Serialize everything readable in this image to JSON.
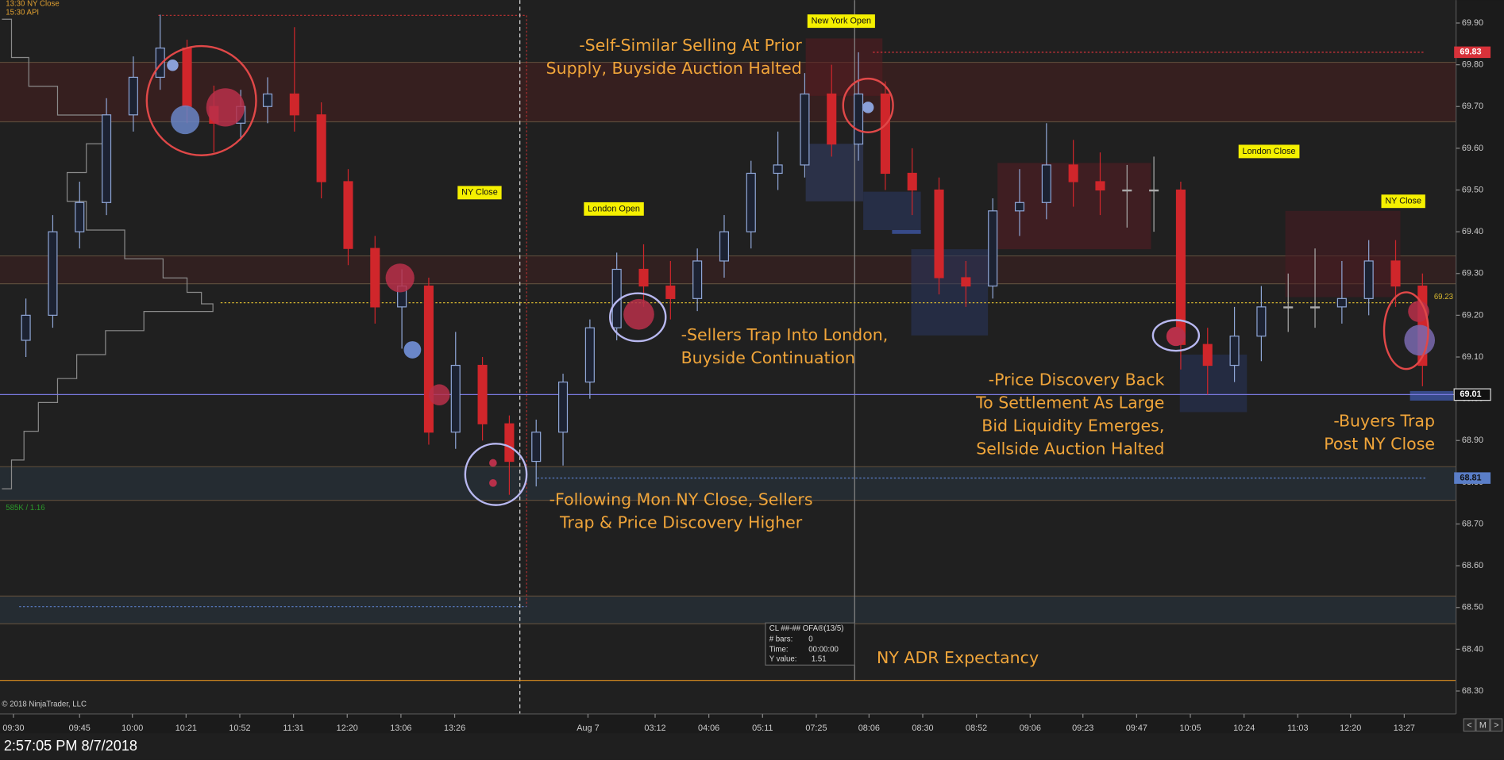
{
  "chart_data": {
    "type": "candlestick",
    "header_texts": [
      "13:30 NY Close",
      "15:30 API"
    ],
    "copyright": "© 2018 NinjaTrader, LLC",
    "volume_stat": "585K / 1.16",
    "open": [
      69.14,
      69.2,
      69.4,
      69.47,
      69.68,
      69.77,
      69.84,
      69.7,
      69.66,
      69.7,
      69.73,
      69.68,
      69.52,
      69.36,
      69.22,
      69.27,
      68.92,
      69.08,
      68.94,
      68.85,
      68.92,
      69.04,
      69.17,
      69.31,
      69.27,
      69.24,
      69.33,
      69.4,
      69.54,
      69.56,
      69.73,
      69.61,
      69.73,
      69.54,
      69.5,
      69.29,
      69.27,
      69.45,
      69.47,
      69.56,
      69.52,
      69.5,
      69.5,
      69.5,
      69.13,
      69.08,
      69.15,
      69.22,
      69.22,
      69.22,
      69.24,
      69.33,
      69.27
    ],
    "high": [
      69.24,
      69.44,
      69.52,
      69.72,
      69.82,
      69.92,
      69.86,
      69.75,
      69.74,
      69.77,
      69.89,
      69.71,
      69.55,
      69.39,
      69.31,
      69.29,
      69.16,
      69.1,
      68.96,
      68.95,
      69.06,
      69.19,
      69.35,
      69.37,
      69.33,
      69.36,
      69.44,
      69.57,
      69.64,
      69.78,
      69.8,
      69.83,
      69.76,
      69.6,
      69.53,
      69.33,
      69.48,
      69.55,
      69.66,
      69.62,
      69.59,
      69.56,
      69.58,
      69.52,
      69.17,
      69.22,
      69.27,
      69.3,
      69.36,
      69.33,
      69.38,
      69.38,
      69.3
    ],
    "low": [
      69.1,
      69.17,
      69.36,
      69.44,
      69.64,
      69.74,
      69.66,
      69.59,
      69.62,
      69.66,
      69.64,
      69.48,
      69.32,
      69.18,
      69.12,
      68.89,
      68.88,
      68.9,
      68.77,
      68.79,
      68.84,
      69.0,
      69.14,
      69.22,
      69.19,
      69.21,
      69.29,
      69.36,
      69.5,
      69.53,
      69.58,
      69.57,
      69.5,
      69.44,
      69.25,
      69.22,
      69.24,
      69.39,
      69.43,
      69.46,
      69.44,
      69.41,
      69.4,
      69.07,
      69.01,
      69.04,
      69.09,
      69.16,
      69.17,
      69.18,
      69.2,
      69.22,
      69.03
    ],
    "close": [
      69.2,
      69.4,
      69.47,
      69.68,
      69.77,
      69.84,
      69.7,
      69.66,
      69.7,
      69.73,
      69.68,
      69.52,
      69.36,
      69.22,
      69.27,
      68.92,
      69.08,
      68.94,
      68.85,
      68.92,
      69.04,
      69.17,
      69.31,
      69.27,
      69.24,
      69.33,
      69.4,
      69.54,
      69.56,
      69.73,
      69.61,
      69.73,
      69.54,
      69.5,
      69.29,
      69.27,
      69.45,
      69.47,
      69.56,
      69.52,
      69.5,
      69.5,
      69.5,
      69.13,
      69.08,
      69.15,
      69.22,
      69.22,
      69.22,
      69.24,
      69.33,
      69.27,
      69.08
    ],
    "up_color": "#8fa6d6",
    "down_color": "#d0262b",
    "ylim": [
      68.245,
      69.955
    ],
    "yticks": [
      {
        "value": 68.3,
        "label": "68.30"
      },
      {
        "value": 68.4,
        "label": "68.40"
      },
      {
        "value": 68.5,
        "label": "68.50"
      },
      {
        "value": 68.6,
        "label": "68.60"
      },
      {
        "value": 68.7,
        "label": "68.70"
      },
      {
        "value": 68.8,
        "label": "68.80"
      },
      {
        "value": 68.9,
        "label": "68.90"
      },
      {
        "value": 69.0,
        "label": "69.00"
      },
      {
        "value": 69.1,
        "label": "69.10"
      },
      {
        "value": 69.2,
        "label": "69.20"
      },
      {
        "value": 69.3,
        "label": "69.30"
      },
      {
        "value": 69.4,
        "label": "69.40"
      },
      {
        "value": 69.5,
        "label": "69.50"
      },
      {
        "value": 69.6,
        "label": "69.60"
      },
      {
        "value": 69.7,
        "label": "69.70"
      },
      {
        "value": 69.8,
        "label": "69.80"
      },
      {
        "value": 69.9,
        "label": "69.90"
      }
    ],
    "price_lines": [
      {
        "value": 69.83,
        "color": "#d8323a"
      },
      {
        "value": 69.23,
        "color": "#d8b830"
      },
      {
        "value": 69.01,
        "color": "#7a7ae0"
      },
      {
        "value": 68.81,
        "color": "#5a7ec8"
      }
    ],
    "x_labels": [
      "09:30",
      "09:45",
      "10:00",
      "10:21",
      "10:52",
      "11:31",
      "12:20",
      "13:06",
      "13:26",
      "Aug 7",
      "03:12",
      "04:06",
      "05:11",
      "07:25",
      "08:06",
      "08:30",
      "08:52",
      "09:06",
      "09:23",
      "09:47",
      "10:05",
      "10:24",
      "11:03",
      "12:20",
      "13:27"
    ],
    "session_labels": [
      "NY Close",
      "London Open",
      "New York Open",
      "London Close",
      "NY Close"
    ],
    "annotations": [
      {
        "lines": [
          "-Self-Similar Selling At Prior",
          "Supply, Buyside Auction Halted"
        ]
      },
      {
        "lines": [
          "-Sellers Trap Into London,",
          "Buyside Continuation"
        ]
      },
      {
        "lines": [
          "-Price Discovery Back",
          "To Settlement  As Large",
          "Bid Liquidity Emerges,",
          "Sellside Auction Halted"
        ]
      },
      {
        "lines": [
          "-Buyers Trap",
          "Post NY Close"
        ]
      },
      {
        "lines": [
          "-Following Mon NY Close, Sellers",
          "Trap & Price Discovery Higher"
        ]
      },
      {
        "lines": [
          "NY ADR Expectancy"
        ]
      }
    ]
  },
  "info_box": {
    "title": "CL ##-## OFA®(13/5)",
    "rows": [
      [
        "# bars:",
        0
      ],
      [
        "Time:",
        "00:00:00"
      ],
      [
        "Y value:",
        1.51
      ]
    ]
  },
  "nav": [
    "<",
    "M",
    ">"
  ],
  "status_bar": "2:57:05 PM 8/7/2018"
}
